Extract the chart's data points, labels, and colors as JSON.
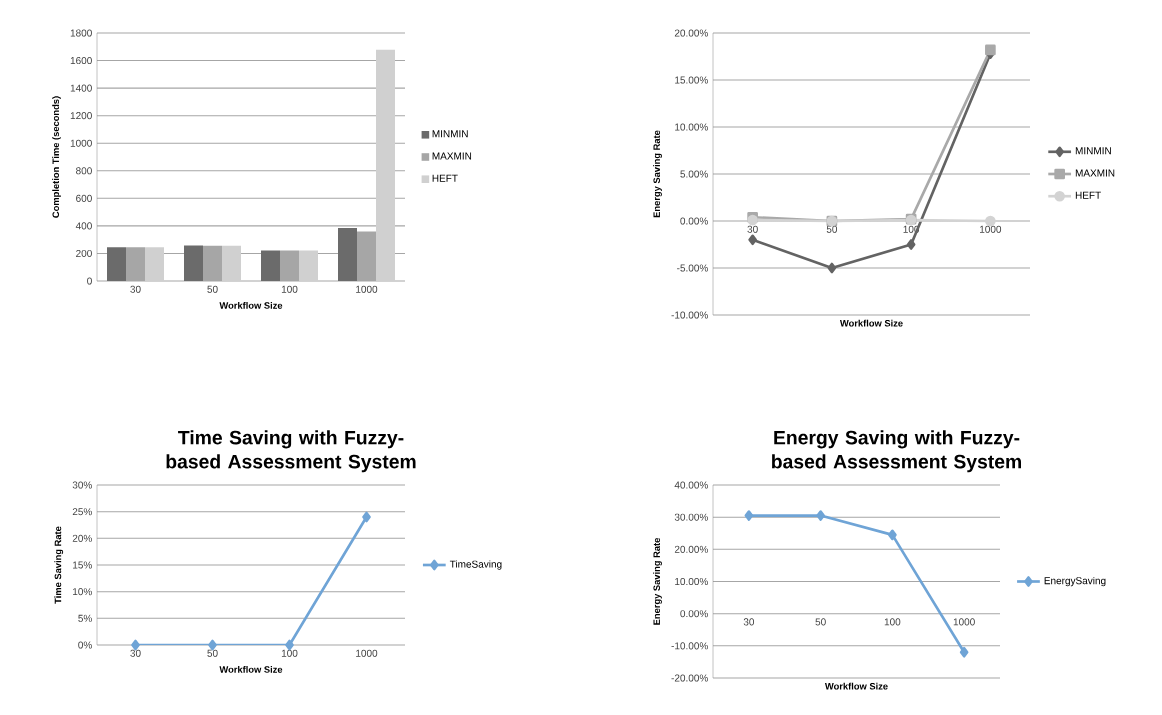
{
  "chart_data": [
    {
      "type": "bar",
      "xlabel": "Workflow Size",
      "ylabel": "Completion Time (seconds)",
      "categories": [
        "30",
        "50",
        "100",
        "1000"
      ],
      "series": [
        {
          "name": "MINMIN",
          "color": "#6b6b6b",
          "values": [
            245,
            258,
            222,
            385
          ]
        },
        {
          "name": "MAXMIN",
          "color": "#a6a6a6",
          "values": [
            245,
            255,
            222,
            360
          ]
        },
        {
          "name": "HEFT",
          "color": "#d0d0d0",
          "values": [
            245,
            255,
            222,
            1680
          ]
        }
      ],
      "ylim": [
        0,
        1800
      ],
      "yticks": [
        0,
        200,
        400,
        600,
        800,
        1000,
        1200,
        1400,
        1600,
        1800
      ],
      "grid": "y",
      "legend": "right"
    },
    {
      "type": "line",
      "xlabel": "Workflow Size",
      "ylabel": "Energy Saving Rate",
      "categories": [
        "30",
        "50",
        "100",
        "1000"
      ],
      "series": [
        {
          "name": "MINMIN",
          "color": "#636363",
          "marker": "diamond",
          "values": [
            -2,
            -5,
            -2.5,
            17.8
          ]
        },
        {
          "name": "MAXMIN",
          "color": "#a9a9a9",
          "marker": "square",
          "values": [
            0.4,
            0,
            0.2,
            18.2
          ]
        },
        {
          "name": "HEFT",
          "color": "#d3d3d3",
          "marker": "circle",
          "values": [
            0.1,
            0,
            0.1,
            0
          ]
        }
      ],
      "ylim": [
        -10,
        20
      ],
      "yticks": [
        {
          "value": -10,
          "label": "-10.00%"
        },
        {
          "value": -5,
          "label": "-5.00%"
        },
        {
          "value": 0,
          "label": "0.00%"
        },
        {
          "value": 5,
          "label": "5.00%"
        },
        {
          "value": 10,
          "label": "10.00%"
        },
        {
          "value": 15,
          "label": "15.00%"
        },
        {
          "value": 20,
          "label": "20.00%"
        }
      ],
      "grid": "y",
      "legend": "right"
    },
    {
      "type": "line",
      "title": "Time Saving with Fuzzy-based Assessment System",
      "xlabel": "Workflow Size",
      "ylabel": "Time Saving Rate",
      "categories": [
        "30",
        "50",
        "100",
        "1000"
      ],
      "series": [
        {
          "name": "TimeSaving",
          "color": "#6fa4d6",
          "marker": "diamond",
          "values": [
            0,
            0,
            0,
            24
          ]
        }
      ],
      "ylim": [
        0,
        30
      ],
      "yticks": [
        {
          "value": 0,
          "label": "0%"
        },
        {
          "value": 5,
          "label": "5%"
        },
        {
          "value": 10,
          "label": "10%"
        },
        {
          "value": 15,
          "label": "15%"
        },
        {
          "value": 20,
          "label": "20%"
        },
        {
          "value": 25,
          "label": "25%"
        },
        {
          "value": 30,
          "label": "30%"
        }
      ],
      "grid": "y",
      "legend": "right"
    },
    {
      "type": "line",
      "title": "Energy Saving with Fuzzy-based Assessment System",
      "xlabel": "Workflow Size",
      "ylabel": "Energy Saving Rate",
      "categories": [
        "30",
        "50",
        "100",
        "1000"
      ],
      "series": [
        {
          "name": "EnergySaving",
          "color": "#6fa4d6",
          "marker": "diamond",
          "values": [
            30.5,
            30.5,
            24.5,
            -12
          ]
        }
      ],
      "ylim": [
        -20,
        40
      ],
      "yticks": [
        {
          "value": -20,
          "label": "-20.00%"
        },
        {
          "value": -10,
          "label": "-10.00%"
        },
        {
          "value": 0,
          "label": "0.00%"
        },
        {
          "value": 10,
          "label": "10.00%"
        },
        {
          "value": 20,
          "label": "20.00%"
        },
        {
          "value": 30,
          "label": "30.00%"
        },
        {
          "value": 40,
          "label": "40.00%"
        }
      ],
      "grid": "y",
      "legend": "right"
    }
  ]
}
